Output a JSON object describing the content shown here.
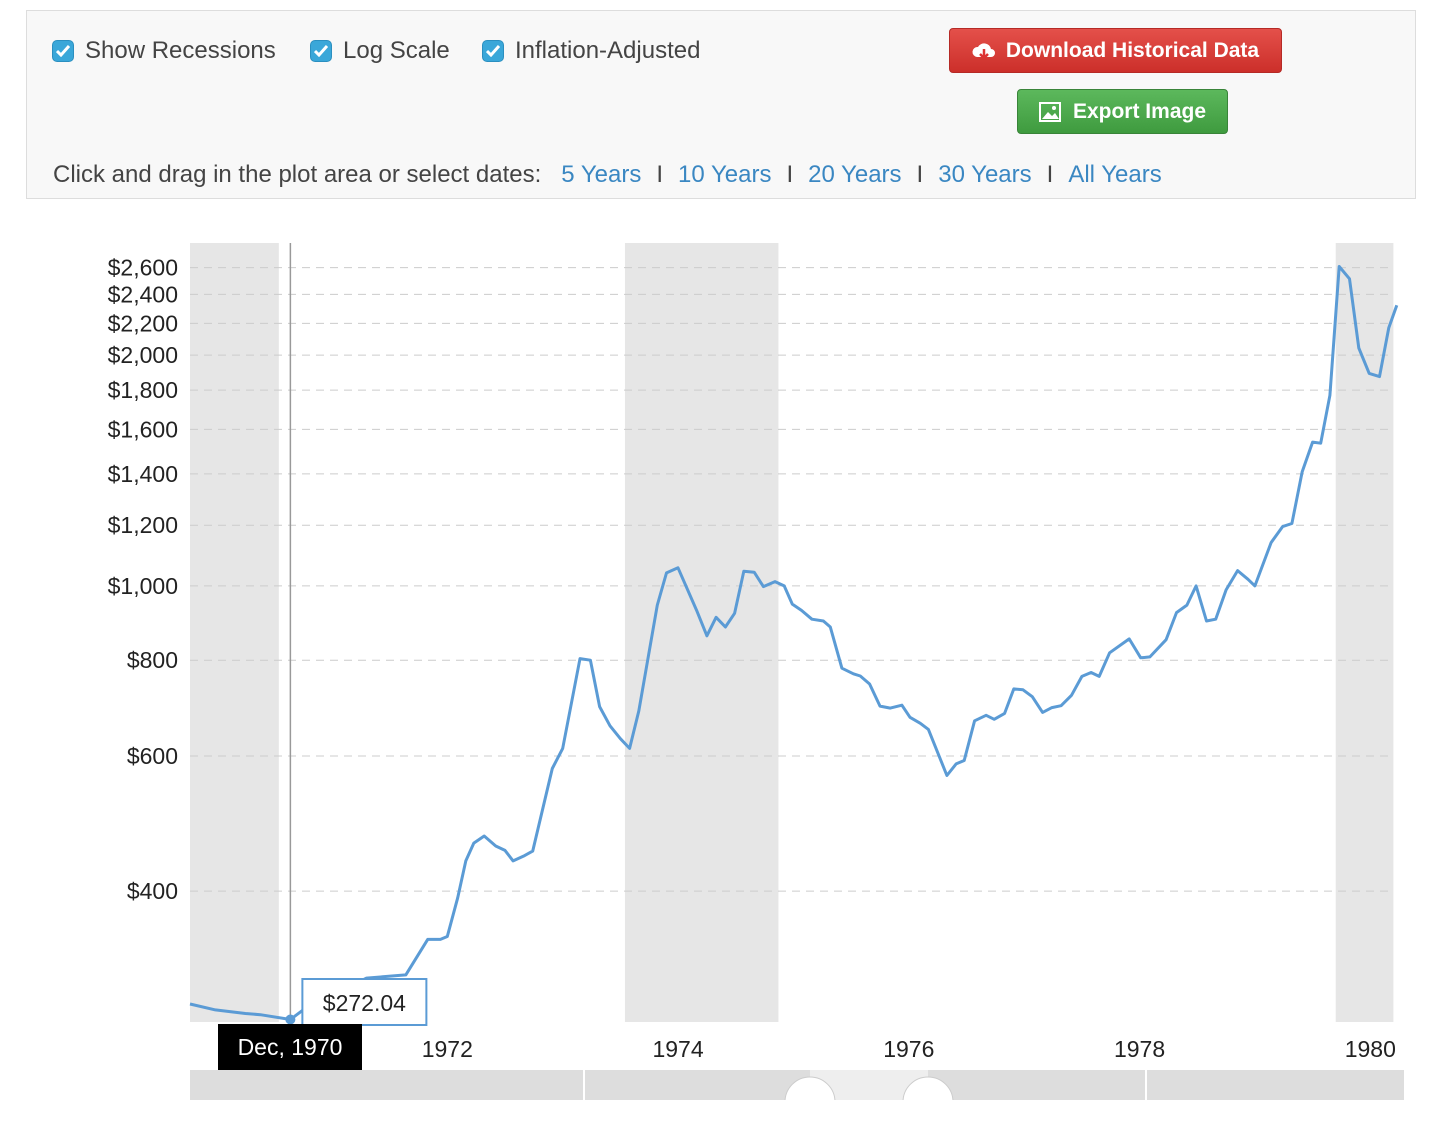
{
  "controls": {
    "checkboxes": [
      {
        "label": "Show Recessions",
        "checked": true
      },
      {
        "label": "Log Scale",
        "checked": true
      },
      {
        "label": "Inflation-Adjusted",
        "checked": true
      }
    ],
    "download_button": "Download Historical Data",
    "export_button": "Export Image",
    "range_prompt": "Click and drag in the plot area or select dates:",
    "range_links": [
      "5 Years",
      "10 Years",
      "20 Years",
      "30 Years",
      "All Years"
    ],
    "separator": "I"
  },
  "chart_data": {
    "type": "line",
    "log_scale": true,
    "grid": true,
    "color": "#5b9bd5",
    "recession_color": "#e6e6e6",
    "xlim": [
      1969.77,
      1980.24
    ],
    "ylim": [
      270,
      2800
    ],
    "xticks": [
      1972,
      1974,
      1976,
      1978,
      1980
    ],
    "yticks": [
      {
        "value": 400,
        "label": "$400"
      },
      {
        "value": 600,
        "label": "$600"
      },
      {
        "value": 800,
        "label": "$800"
      },
      {
        "value": 1000,
        "label": "$1,000"
      },
      {
        "value": 1200,
        "label": "$1,200"
      },
      {
        "value": 1400,
        "label": "$1,400"
      },
      {
        "value": 1600,
        "label": "$1,600"
      },
      {
        "value": 1800,
        "label": "$1,800"
      },
      {
        "value": 2000,
        "label": "$2,000"
      },
      {
        "value": 2200,
        "label": "$2,200"
      },
      {
        "value": 2400,
        "label": "$2,400"
      },
      {
        "value": 2600,
        "label": "$2,600"
      }
    ],
    "recessions": [
      [
        1969.77,
        1970.54
      ],
      [
        1973.54,
        1974.87
      ],
      [
        1979.7,
        1980.2
      ]
    ],
    "x": [
      1969.77,
      1969.99,
      1970.25,
      1970.38,
      1970.64,
      1970.75,
      1971.3,
      1971.64,
      1971.83,
      1971.94,
      1972.0,
      1972.09,
      1972.16,
      1972.23,
      1972.32,
      1972.42,
      1972.5,
      1972.57,
      1972.67,
      1972.74,
      1972.91,
      1973.0,
      1973.15,
      1973.24,
      1973.32,
      1973.41,
      1973.5,
      1973.58,
      1973.66,
      1973.82,
      1973.9,
      1974.0,
      1974.16,
      1974.25,
      1974.33,
      1974.41,
      1974.49,
      1974.57,
      1974.66,
      1974.74,
      1974.84,
      1974.92,
      1974.99,
      1975.07,
      1975.16,
      1975.26,
      1975.32,
      1975.42,
      1975.52,
      1975.58,
      1975.66,
      1975.75,
      1975.84,
      1975.94,
      1976.01,
      1976.1,
      1976.17,
      1976.33,
      1976.41,
      1976.48,
      1976.57,
      1976.67,
      1976.74,
      1976.83,
      1976.91,
      1976.99,
      1977.07,
      1977.16,
      1977.24,
      1977.32,
      1977.41,
      1977.5,
      1977.58,
      1977.65,
      1977.74,
      1977.91,
      1978.01,
      1978.09,
      1978.23,
      1978.32,
      1978.41,
      1978.49,
      1978.58,
      1978.66,
      1978.75,
      1978.85,
      1978.94,
      1979.0,
      1979.14,
      1979.24,
      1979.32,
      1979.41,
      1979.5,
      1979.57,
      1979.65,
      1979.73,
      1979.82,
      1979.9,
      1979.99,
      1980.08,
      1980.16,
      1980.23
    ],
    "values": [
      285,
      280,
      277,
      276,
      272.04,
      280,
      308,
      311,
      346,
      346,
      349,
      392,
      438,
      462,
      472,
      458,
      452,
      438,
      445,
      451,
      578,
      614,
      804,
      800,
      696,
      657,
      632,
      614,
      687,
      944,
      1040,
      1056,
      930,
      861,
      910,
      884,
      921,
      1045,
      1042,
      998,
      1013,
      1000,
      947,
      929,
      905,
      900,
      884,
      781,
      768,
      763,
      745,
      697,
      693,
      699,
      674,
      662,
      650,
      566,
      586,
      592,
      667,
      678,
      670,
      682,
      734,
      732,
      717,
      684,
      694,
      698,
      720,
      762,
      771,
      762,
      818,
      853,
      806,
      808,
      851,
      923,
      944,
      1000,
      900,
      905,
      988,
      1047,
      1020,
      1000,
      1139,
      1195,
      1206,
      1409,
      1540,
      1535,
      1772,
      2609,
      2515,
      2043,
      1893,
      1875,
      2171,
      2322
    ],
    "tooltip": {
      "date": "Dec, 1970",
      "x": 1970.64,
      "value": 272.04,
      "value_label": "$272.04"
    }
  }
}
